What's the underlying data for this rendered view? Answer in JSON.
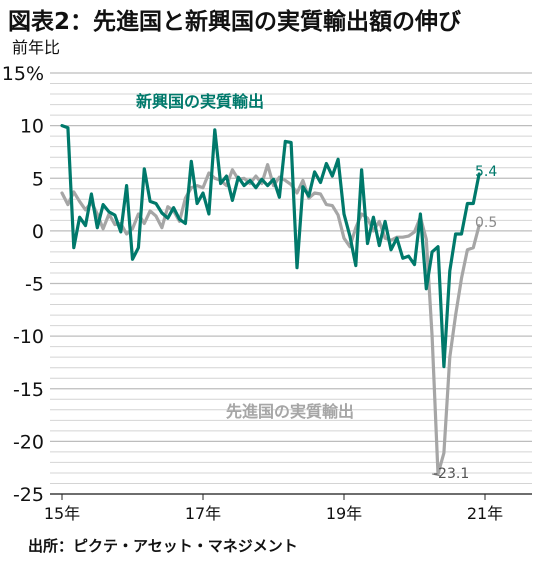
{
  "title": "図表2：先進国と新興国の実質輸出額の伸び",
  "unit_label": "前年比",
  "source": "出所：ピクテ・アセット・マネジメント",
  "chart_data": {
    "type": "line",
    "title": "図表2：先進国と新興国の実質輸出額の伸び",
    "ylabel": "前年比",
    "y_tick_labels": [
      "15%",
      "10",
      "5",
      "0",
      "-5",
      "-10",
      "-15",
      "-20",
      "-25"
    ],
    "y_ticks": [
      15,
      10,
      5,
      0,
      -5,
      -10,
      -15,
      -20,
      -25
    ],
    "ylim": [
      -25,
      15
    ],
    "x_tick_labels": [
      "15年",
      "17年",
      "19年",
      "21年"
    ],
    "x_tick_positions": [
      0,
      24,
      48,
      72
    ],
    "xlim": [
      0,
      80
    ],
    "grid": true,
    "series": [
      {
        "name": "新興国の実質輸出",
        "color": "#00796b",
        "end_label": "5.4",
        "values": [
          10,
          9.8,
          -1.6,
          1.3,
          0.5,
          3.5,
          0.3,
          2.5,
          1.8,
          1.5,
          -0.1,
          4.3,
          -2.7,
          -1.6,
          5.9,
          2.8,
          2.6,
          1.7,
          1.2,
          2.2,
          1.1,
          0.7,
          6.6,
          2.6,
          3.6,
          1.6,
          9.6,
          4.5,
          5.2,
          2.9,
          5.1,
          4.3,
          4.8,
          4.1,
          4.9,
          4.3,
          4.9,
          3.2,
          8.5,
          8.4,
          -3.5,
          4.2,
          3.3,
          5.6,
          4.6,
          6.4,
          5.2,
          6.8,
          1.6,
          -0.5,
          -3.3,
          5.8,
          -1.2,
          1.3,
          -1.4,
          0.9,
          -1.8,
          -0.7,
          -2.6,
          -2.4,
          -3.2,
          1.6,
          -5.5,
          -2,
          -1.5,
          -12.9,
          -3.8,
          -0.3,
          -0.3,
          2.6,
          2.6,
          5.4
        ]
      },
      {
        "name": "先進国の実質輸出",
        "color": "#a6a6a6",
        "end_label": "0.5",
        "end_callout": "-23.1",
        "values": [
          3.6,
          2.5,
          3.7,
          2.8,
          2,
          2.7,
          1.6,
          0.2,
          1.6,
          0.6,
          0.7,
          -0.3,
          0.2,
          1.6,
          0.7,
          1.9,
          1.4,
          0.3,
          2.3,
          1.9,
          0.9,
          3.1,
          4.1,
          4.3,
          4.1,
          5.5,
          5,
          4.8,
          4.3,
          5.8,
          4.9,
          5,
          4.5,
          5.2,
          4.5,
          6.3,
          4.3,
          5.1,
          4.8,
          4.4,
          3.6,
          4.8,
          3.1,
          3.6,
          3.5,
          2.5,
          2.4,
          1.5,
          -0.7,
          -1.5,
          0.3,
          1.6,
          1.2,
          0,
          0.9,
          -0.7,
          -0.9,
          -0.6,
          -0.6,
          -0.5,
          -0.1,
          1.3,
          -0.8,
          -10,
          -23.1,
          -21.1,
          -12,
          -8,
          -4.5,
          -1.8,
          -1.6,
          0.5
        ]
      }
    ],
    "annotations": [
      "新興国の実質輸出",
      "先進国の実質輸出",
      "5.4",
      "0.5",
      "-23.1"
    ]
  }
}
